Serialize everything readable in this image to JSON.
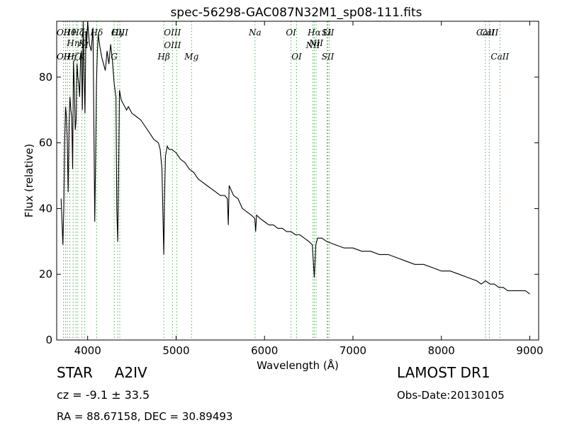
{
  "chart_data": {
    "type": "line",
    "title": "spec-56298-GAC087N32M1_sp08-111.fits",
    "xlabel": "Wavelength (Å)",
    "ylabel": "Flux (relative)",
    "xlim": [
      3650,
      9100
    ],
    "ylim": [
      0,
      97
    ],
    "xticks": [
      4000,
      5000,
      6000,
      7000,
      8000,
      9000
    ],
    "yticks": [
      0,
      20,
      40,
      60,
      80
    ],
    "grid": false,
    "line_color": "#000000",
    "marker_line_color": "#4caf50",
    "series": [
      {
        "x": [
          3700,
          3710,
          3720,
          3730,
          3740,
          3750,
          3760,
          3770,
          3780,
          3790,
          3800,
          3810,
          3820,
          3830,
          3840,
          3850,
          3860,
          3870,
          3880,
          3890,
          3900,
          3910,
          3920,
          3930,
          3940,
          3950,
          3960,
          3970,
          3980,
          3990,
          4000,
          4020,
          4040,
          4060,
          4080,
          4090,
          4100,
          4110,
          4120,
          4140,
          4160,
          4180,
          4200,
          4220,
          4240,
          4260,
          4280,
          4300,
          4320,
          4330,
          4340,
          4350,
          4360,
          4380,
          4400,
          4420,
          4440,
          4460,
          4480,
          4500,
          4550,
          4600,
          4650,
          4700,
          4750,
          4800,
          4820,
          4840,
          4850,
          4861,
          4870,
          4880,
          4900,
          4920,
          4950,
          5000,
          5050,
          5100,
          5150,
          5200,
          5250,
          5300,
          5350,
          5400,
          5450,
          5500,
          5550,
          5580,
          5590,
          5600,
          5650,
          5700,
          5750,
          5800,
          5850,
          5890,
          5900,
          5910,
          5950,
          6000,
          6050,
          6100,
          6150,
          6200,
          6250,
          6300,
          6350,
          6400,
          6450,
          6500,
          6540,
          6563,
          6580,
          6600,
          6650,
          6700,
          6800,
          6900,
          7000,
          7100,
          7200,
          7300,
          7400,
          7500,
          7600,
          7700,
          7800,
          7900,
          8000,
          8100,
          8200,
          8300,
          8400,
          8450,
          8500,
          8550,
          8600,
          8650,
          8700,
          8750,
          8800,
          8850,
          8900,
          8950,
          9000
        ],
        "y": [
          43,
          36,
          29,
          40,
          60,
          71,
          68,
          60,
          45,
          66,
          74,
          70,
          68,
          52,
          85,
          76,
          64,
          67,
          84,
          80,
          78,
          74,
          86,
          88,
          70,
          98,
          80,
          69,
          94,
          90,
          97,
          90,
          88,
          95,
          36,
          55,
          78,
          88,
          93,
          89,
          86,
          84,
          82,
          88,
          84,
          90,
          85,
          78,
          74,
          40,
          30,
          50,
          76,
          73,
          72,
          71,
          70,
          71,
          70,
          69,
          68,
          67,
          65,
          63,
          61,
          60,
          58,
          52,
          40,
          26,
          44,
          56,
          59,
          58,
          58,
          57,
          55,
          54,
          52,
          51,
          49,
          48,
          47,
          46,
          45,
          44,
          44,
          43,
          35,
          47,
          44,
          43,
          40,
          39,
          38,
          37,
          33,
          38,
          37,
          36,
          35,
          35,
          34,
          34,
          33,
          33,
          32,
          32,
          31,
          30,
          29,
          19,
          29,
          31,
          31,
          30,
          29,
          28,
          28,
          27,
          27,
          26,
          26,
          25,
          24,
          23,
          23,
          22,
          21,
          21,
          20,
          19,
          18,
          17,
          18,
          17,
          17,
          16,
          16,
          15,
          15,
          15,
          15,
          15,
          14
        ]
      }
    ],
    "lines": [
      {
        "wavelength": 3727,
        "top": "OII",
        "bottom": "OII"
      },
      {
        "wavelength": 3750,
        "top": "",
        "bottom": ""
      },
      {
        "wavelength": 3771,
        "top": "",
        "bottom": ""
      },
      {
        "wavelength": 3798,
        "top": "Hθ",
        "bottom": "Hη"
      },
      {
        "wavelength": 3835,
        "top": "Hη",
        "bottom": "Hζ"
      },
      {
        "wavelength": 3869,
        "top": "",
        "bottom": ""
      },
      {
        "wavelength": 3889,
        "top": "Hζ",
        "bottom": ""
      },
      {
        "wavelength": 3934,
        "top": "K",
        "bottom": "K"
      },
      {
        "wavelength": 3968,
        "top": "H",
        "bottom": "H"
      },
      {
        "wavelength": 4102,
        "top": "Hδ",
        "bottom": ""
      },
      {
        "wavelength": 4300,
        "top": "",
        "bottom": "G"
      },
      {
        "wavelength": 4340,
        "top": "Hγ",
        "bottom": ""
      },
      {
        "wavelength": 4363,
        "top": "OIII",
        "bottom": ""
      },
      {
        "wavelength": 4861,
        "top": "",
        "bottom": "Hβ"
      },
      {
        "wavelength": 4959,
        "top": "OIII",
        "bottom": "OIII"
      },
      {
        "wavelength": 5007,
        "top": "",
        "bottom": ""
      },
      {
        "wavelength": 5175,
        "top": "",
        "bottom": "Mg"
      },
      {
        "wavelength": 5893,
        "top": "Na",
        "bottom": ""
      },
      {
        "wavelength": 6300,
        "top": "OI",
        "bottom": ""
      },
      {
        "wavelength": 6363,
        "top": "",
        "bottom": "OI"
      },
      {
        "wavelength": 6548,
        "top": "",
        "bottom": "NII"
      },
      {
        "wavelength": 6563,
        "top": "Hα",
        "bottom": ""
      },
      {
        "wavelength": 6583,
        "top": "NII",
        "bottom": ""
      },
      {
        "wavelength": 6707,
        "top": "Li",
        "bottom": ""
      },
      {
        "wavelength": 6716,
        "top": "SII",
        "bottom": "SII"
      },
      {
        "wavelength": 6731,
        "top": "",
        "bottom": ""
      },
      {
        "wavelength": 8498,
        "top": "CaII",
        "bottom": ""
      },
      {
        "wavelength": 8542,
        "top": "CaII",
        "bottom": ""
      },
      {
        "wavelength": 8662,
        "top": "",
        "bottom": "CaII"
      }
    ]
  },
  "info": {
    "class": "STAR",
    "subclass": "A2IV",
    "survey": "LAMOST DR1",
    "cz": "cz = -9.1 ± 33.5",
    "obs_date": "Obs-Date:20130105",
    "radec": "RA = 88.67158, DEC = 30.89493"
  }
}
